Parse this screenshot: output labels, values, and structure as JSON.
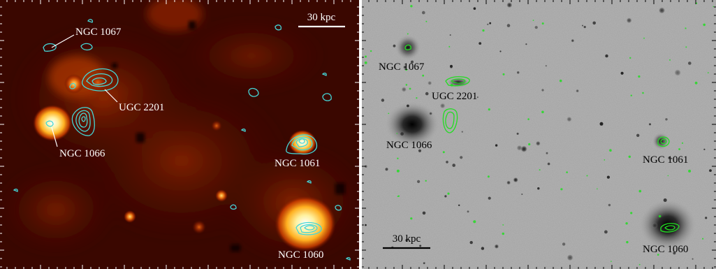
{
  "left_panel": {
    "scale_bar": "30 kpc",
    "labels": [
      "NGC 1067",
      "UGC 2201",
      "NGC 1066",
      "NGC 1061",
      "NGC 1060"
    ]
  },
  "right_panel": {
    "scale_bar": "30 kpc",
    "labels": [
      "NGC 1067",
      "UGC 2201",
      "NGC 1066",
      "NGC 1061",
      "NGC 1060"
    ]
  },
  "colors": {
    "contour_left": "#45d6d6",
    "contour_right": "#22dd22",
    "xray_background": "#3a0700"
  }
}
